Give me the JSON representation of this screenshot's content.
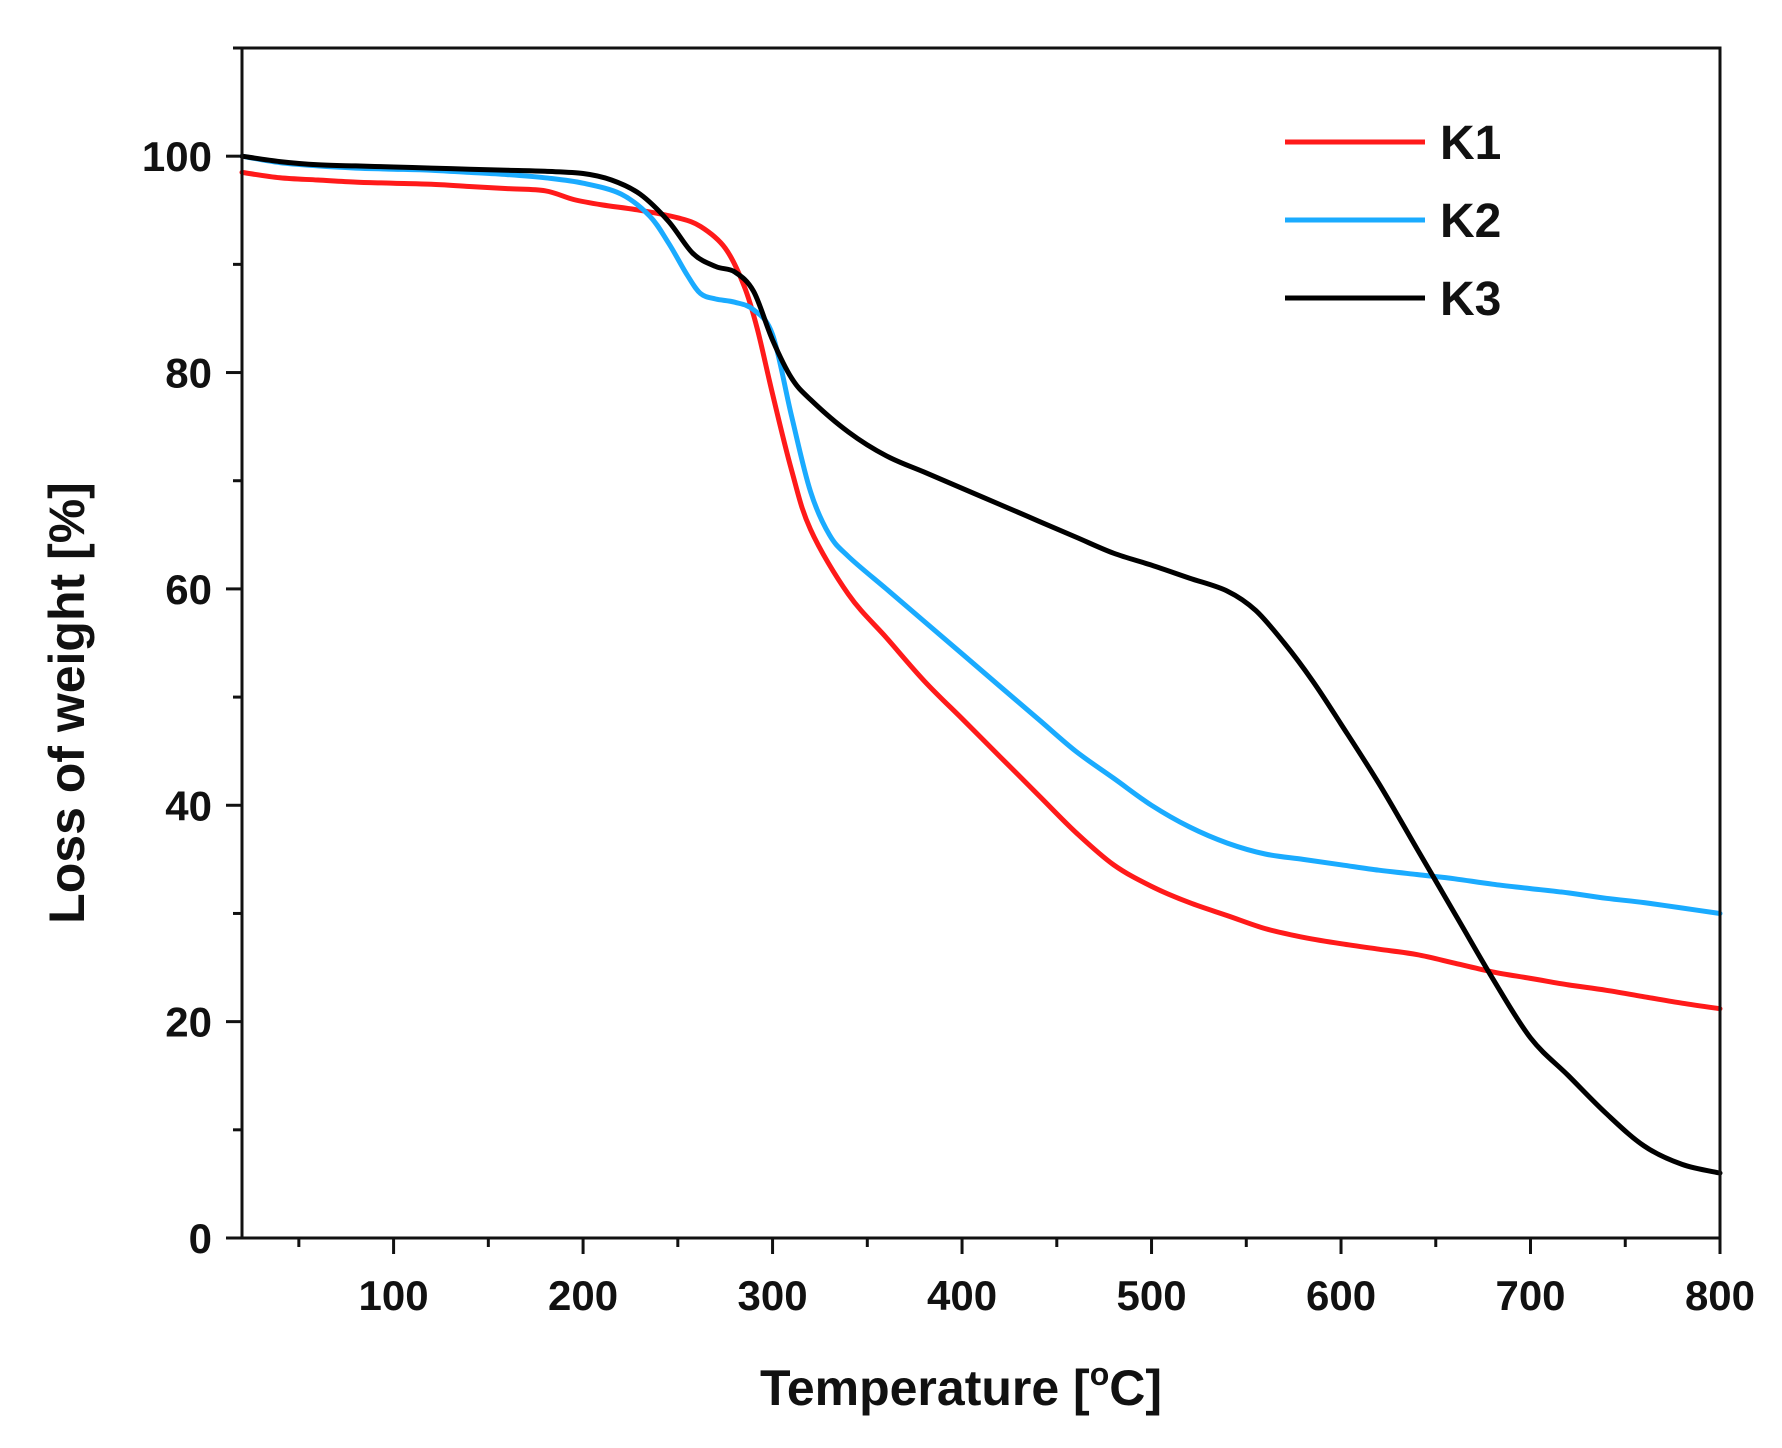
{
  "chart_data": {
    "type": "line",
    "title": "",
    "xlabel_parts": [
      "Temperature [",
      "o",
      "C]"
    ],
    "ylabel": "Loss of weight [%]",
    "xlim": [
      20,
      800
    ],
    "ylim": [
      0,
      110
    ],
    "xticks": [
      100,
      200,
      300,
      400,
      500,
      600,
      700,
      800
    ],
    "xtick_labels": [
      "100",
      "200",
      "300",
      "400",
      "500",
      "600",
      "700",
      "800"
    ],
    "yticks": [
      0,
      20,
      40,
      60,
      80,
      100
    ],
    "ytick_labels": [
      "0",
      "20",
      "40",
      "60",
      "80",
      "100"
    ],
    "legend_position": "top-right",
    "series": [
      {
        "name": "K1",
        "color": "#ff1a1a",
        "x": [
          20,
          40,
          60,
          80,
          100,
          120,
          140,
          160,
          180,
          195,
          210,
          230,
          250,
          262,
          275,
          285,
          292,
          300,
          310,
          320,
          340,
          360,
          380,
          400,
          420,
          440,
          460,
          480,
          500,
          520,
          540,
          560,
          580,
          600,
          620,
          640,
          660,
          680,
          700,
          720,
          740,
          760,
          780,
          800
        ],
        "y": [
          98.5,
          98.0,
          97.8,
          97.6,
          97.5,
          97.4,
          97.2,
          97.0,
          96.8,
          96.0,
          95.5,
          95.0,
          94.3,
          93.5,
          91.5,
          88.0,
          84.0,
          78.0,
          71.0,
          65.5,
          59.5,
          55.5,
          51.5,
          48.0,
          44.5,
          41.0,
          37.5,
          34.5,
          32.5,
          31.0,
          29.8,
          28.6,
          27.8,
          27.2,
          26.7,
          26.2,
          25.4,
          24.6,
          24.0,
          23.4,
          22.9,
          22.3,
          21.7,
          21.2
        ]
      },
      {
        "name": "K2",
        "color": "#1aabff",
        "x": [
          20,
          40,
          60,
          80,
          100,
          120,
          140,
          160,
          180,
          200,
          220,
          235,
          245,
          255,
          262,
          270,
          280,
          290,
          300,
          310,
          320,
          330,
          340,
          360,
          380,
          400,
          420,
          440,
          460,
          480,
          500,
          520,
          540,
          560,
          580,
          600,
          620,
          640,
          660,
          680,
          700,
          720,
          740,
          760,
          780,
          800
        ],
        "y": [
          100.0,
          99.4,
          99.1,
          98.9,
          98.8,
          98.7,
          98.5,
          98.3,
          98.0,
          97.5,
          96.5,
          94.5,
          92.0,
          89.0,
          87.3,
          86.8,
          86.5,
          85.8,
          83.5,
          76.0,
          69.0,
          65.0,
          63.0,
          60.0,
          57.0,
          54.0,
          51.0,
          48.0,
          45.0,
          42.5,
          40.0,
          38.0,
          36.5,
          35.5,
          35.0,
          34.5,
          34.0,
          33.6,
          33.2,
          32.7,
          32.3,
          31.9,
          31.4,
          31.0,
          30.5,
          30.0
        ]
      },
      {
        "name": "K3",
        "color": "#000000",
        "x": [
          20,
          40,
          60,
          80,
          100,
          120,
          140,
          160,
          180,
          200,
          215,
          230,
          245,
          258,
          270,
          280,
          290,
          300,
          310,
          320,
          340,
          360,
          380,
          400,
          420,
          440,
          460,
          480,
          500,
          520,
          540,
          555,
          570,
          585,
          600,
          620,
          640,
          660,
          680,
          700,
          720,
          740,
          760,
          780,
          800
        ],
        "y": [
          100.0,
          99.5,
          99.2,
          99.1,
          99.0,
          98.9,
          98.8,
          98.7,
          98.6,
          98.4,
          97.8,
          96.5,
          94.0,
          91.0,
          89.8,
          89.3,
          87.5,
          83.0,
          79.5,
          77.5,
          74.5,
          72.3,
          70.8,
          69.3,
          67.8,
          66.3,
          64.8,
          63.3,
          62.2,
          61.0,
          59.8,
          58.0,
          55.0,
          51.5,
          47.5,
          42.0,
          36.0,
          30.0,
          24.0,
          18.5,
          15.0,
          11.5,
          8.5,
          6.8,
          6.0
        ]
      }
    ]
  }
}
